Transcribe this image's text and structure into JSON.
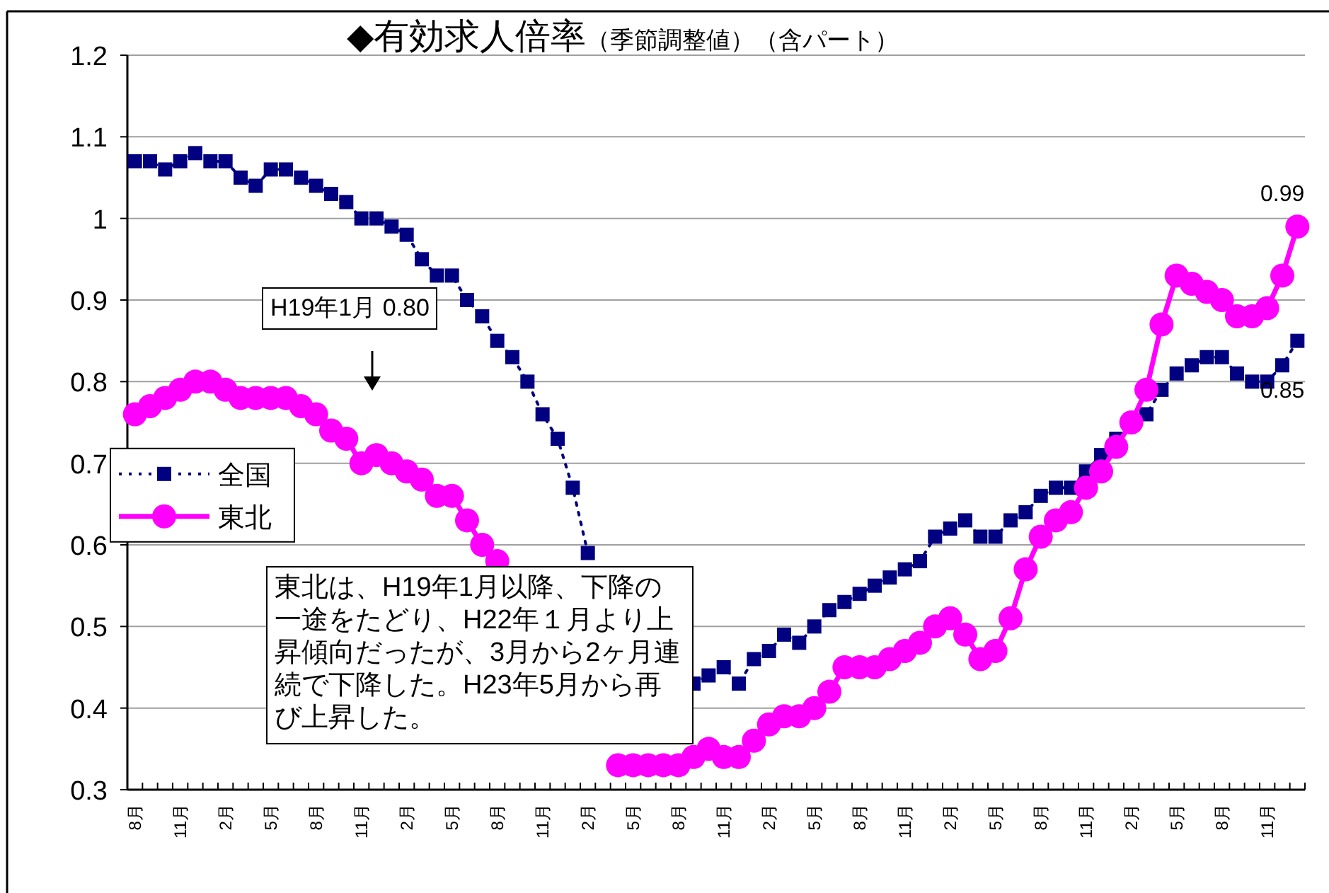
{
  "chart_data": {
    "type": "line",
    "title": "◆有効求人倍率",
    "subtitle": "（季節調整値）（含パート）",
    "categories": [
      "8月",
      null,
      null,
      "11月",
      null,
      null,
      "2月",
      null,
      null,
      "5月",
      null,
      null,
      "8月",
      null,
      null,
      "11月",
      null,
      null,
      "2月",
      null,
      null,
      "5月",
      null,
      null,
      "8月",
      null,
      null,
      "11月",
      null,
      null,
      "2月",
      null,
      null,
      "5月",
      null,
      null,
      "8月",
      null,
      null,
      "11月",
      null,
      null,
      "2月",
      null,
      null,
      "5月",
      null,
      null,
      "8月",
      null,
      null,
      "11月",
      null,
      null,
      "2月",
      null,
      null,
      "5月",
      null,
      null,
      "8月",
      null,
      null,
      "11月",
      null,
      null,
      "2月",
      null,
      null,
      "5月",
      null,
      null,
      "8月",
      null,
      null,
      "11月",
      null,
      null
    ],
    "series": [
      {
        "name": "全国",
        "color": "#000080",
        "marker": "square",
        "line_style": "dotted",
        "values": [
          1.07,
          1.07,
          1.06,
          1.07,
          1.08,
          1.07,
          1.07,
          1.05,
          1.04,
          1.06,
          1.06,
          1.05,
          1.04,
          1.03,
          1.02,
          1.0,
          1.0,
          0.99,
          0.98,
          0.95,
          0.93,
          0.93,
          0.9,
          0.88,
          0.85,
          0.83,
          0.8,
          0.76,
          0.73,
          0.67,
          0.59,
          null,
          null,
          null,
          null,
          null,
          null,
          0.43,
          0.44,
          0.45,
          0.43,
          0.46,
          0.47,
          0.49,
          0.48,
          0.5,
          0.52,
          0.53,
          0.54,
          0.55,
          0.56,
          0.57,
          0.58,
          0.61,
          0.62,
          0.63,
          0.61,
          0.61,
          0.63,
          0.64,
          0.66,
          0.67,
          0.67,
          0.69,
          0.71,
          0.73,
          0.75,
          0.76,
          0.79,
          0.81,
          0.82,
          0.83,
          0.83,
          0.81,
          0.8,
          0.8,
          0.82,
          0.85
        ],
        "value_labels": [
          null,
          null,
          null,
          null,
          null,
          null,
          null,
          null,
          null,
          null,
          null,
          null,
          null,
          null,
          null,
          null,
          null,
          null,
          null,
          null,
          null,
          null,
          null,
          null,
          null,
          null,
          null,
          null,
          null,
          null,
          null,
          null,
          null,
          null,
          null,
          null,
          null,
          null,
          null,
          null,
          null,
          null,
          null,
          null,
          null,
          null,
          null,
          null,
          null,
          null,
          null,
          null,
          null,
          null,
          null,
          null,
          null,
          null,
          null,
          null,
          null,
          null,
          null,
          null,
          null,
          null,
          null,
          null,
          null,
          null,
          null,
          null,
          null,
          null,
          null,
          null,
          null,
          "0.85"
        ]
      },
      {
        "name": "東北",
        "color": "#ff00ff",
        "marker": "circle",
        "line_style": "solid",
        "values": [
          0.76,
          0.77,
          0.78,
          0.79,
          0.8,
          0.8,
          0.79,
          0.78,
          0.78,
          0.78,
          0.78,
          0.77,
          0.76,
          0.74,
          0.73,
          0.7,
          0.71,
          0.7,
          0.69,
          0.68,
          0.66,
          0.66,
          0.63,
          0.6,
          0.58,
          null,
          null,
          null,
          null,
          null,
          null,
          null,
          0.33,
          0.33,
          0.33,
          0.33,
          0.33,
          0.34,
          0.35,
          0.34,
          0.34,
          0.36,
          0.38,
          0.39,
          0.39,
          0.4,
          0.42,
          0.45,
          0.45,
          0.45,
          0.46,
          0.47,
          0.48,
          0.5,
          0.51,
          0.49,
          0.46,
          0.47,
          0.51,
          0.57,
          0.61,
          0.63,
          0.64,
          0.67,
          0.69,
          0.72,
          0.75,
          0.79,
          0.87,
          0.93,
          0.92,
          0.91,
          0.9,
          0.88,
          0.88,
          0.89,
          0.93,
          0.99
        ],
        "value_labels": [
          null,
          null,
          null,
          null,
          null,
          null,
          null,
          null,
          null,
          null,
          null,
          null,
          null,
          null,
          null,
          null,
          null,
          null,
          null,
          null,
          null,
          null,
          null,
          null,
          null,
          null,
          null,
          null,
          null,
          null,
          null,
          null,
          null,
          null,
          null,
          null,
          null,
          null,
          null,
          null,
          null,
          null,
          null,
          null,
          null,
          null,
          null,
          null,
          null,
          null,
          null,
          null,
          null,
          null,
          null,
          null,
          null,
          null,
          null,
          null,
          null,
          null,
          null,
          null,
          null,
          null,
          null,
          null,
          null,
          null,
          null,
          null,
          null,
          null,
          null,
          null,
          null,
          "0.99"
        ]
      }
    ],
    "ylim": [
      0.3,
      1.2
    ],
    "yticks": [
      0.3,
      0.4,
      0.5,
      0.6,
      0.7,
      0.8,
      0.9,
      1,
      1.1,
      1.2
    ],
    "grid": "y",
    "legend": "left",
    "annotations": [
      "H19年1月 0.80",
      "東北は、H19年1月以降、下降の一途をたどり、H22年１月より上昇傾向だったが、3月から2ヶ月連続で下降した。H23年5月から再び上昇した。"
    ]
  }
}
